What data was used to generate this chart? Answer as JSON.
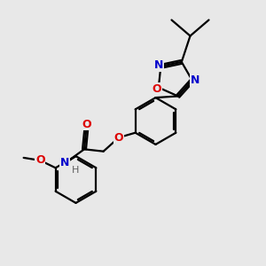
{
  "background_color": "#e8e8e8",
  "atom_colors": {
    "C": "#000000",
    "N": "#0000cc",
    "O": "#dd0000",
    "H": "#606060"
  },
  "bond_color": "#000000",
  "bond_width": 1.6,
  "figsize": [
    3.0,
    3.0
  ],
  "dpi": 100,
  "xlim": [
    0,
    10
  ],
  "ylim": [
    0,
    10
  ]
}
